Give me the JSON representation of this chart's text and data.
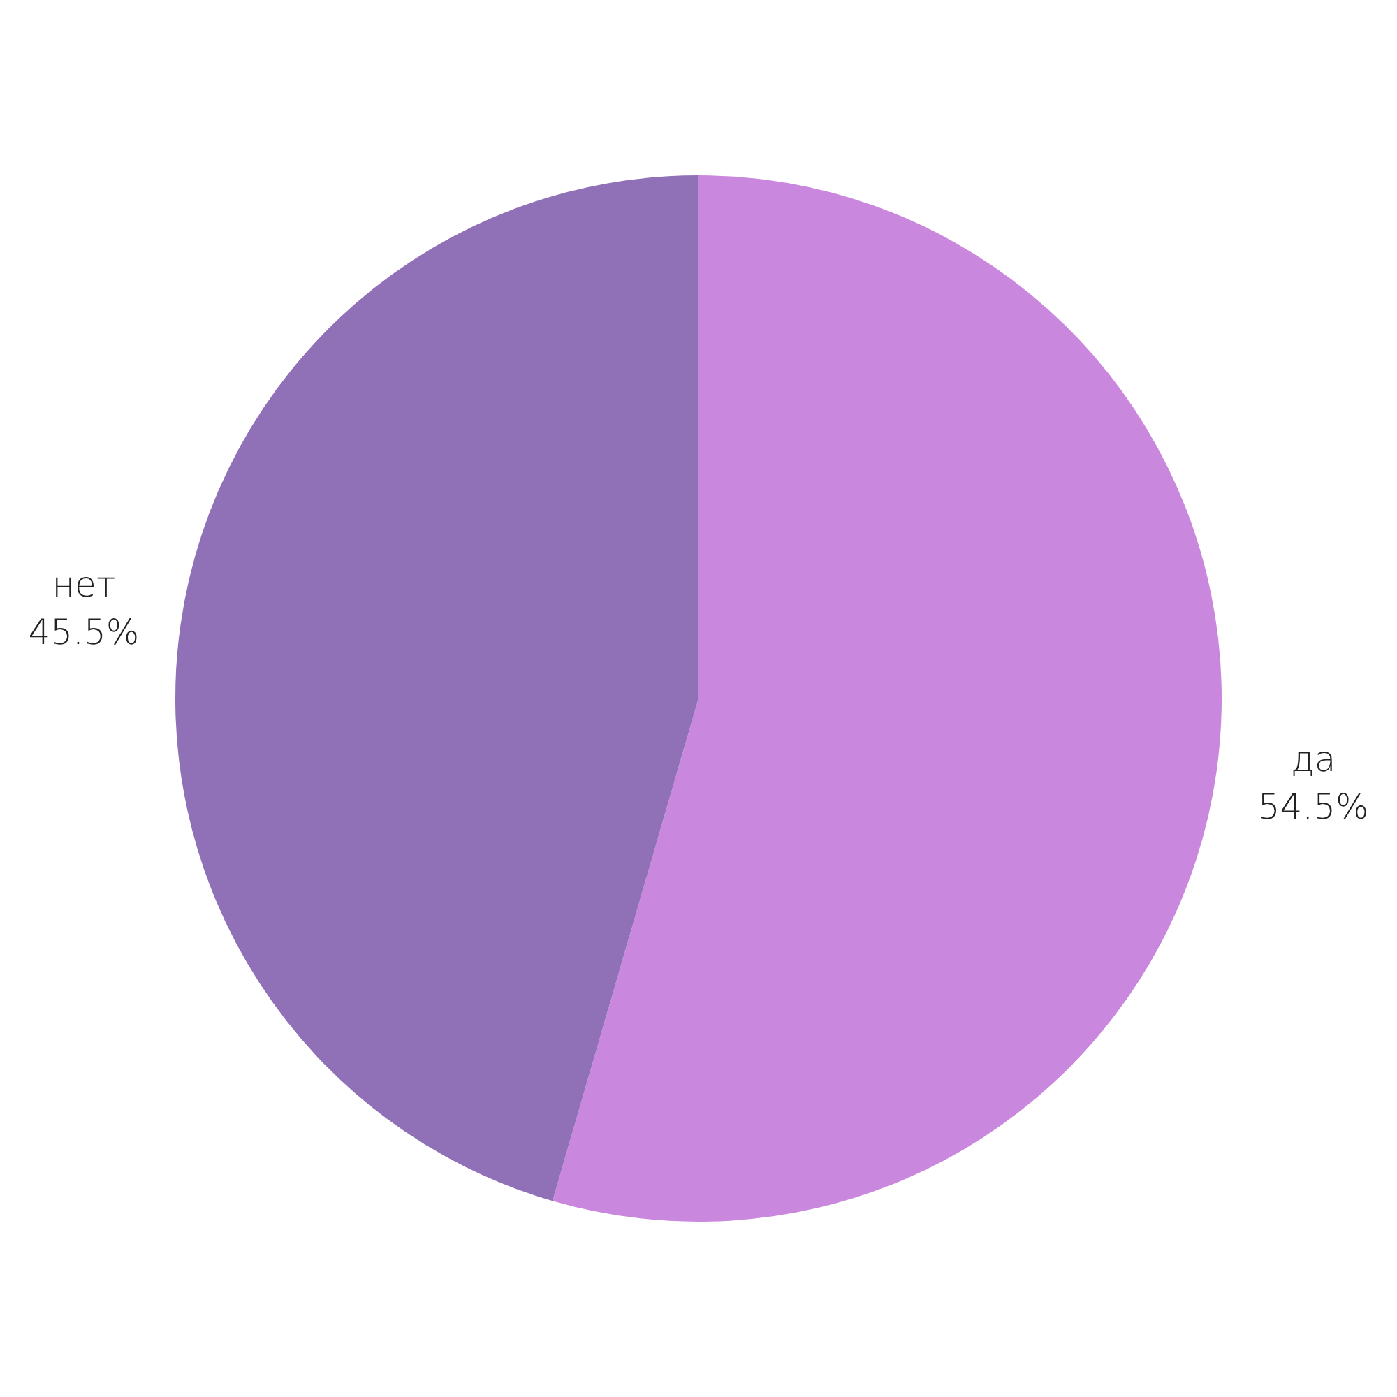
{
  "chart_data": {
    "type": "pie",
    "categories": [
      "да",
      "нет"
    ],
    "values": [
      54.5,
      45.5
    ],
    "colors": [
      "#c987dd",
      "#9071b8"
    ],
    "value_labels": [
      "54.5%",
      "45.5%"
    ],
    "legend": false
  }
}
